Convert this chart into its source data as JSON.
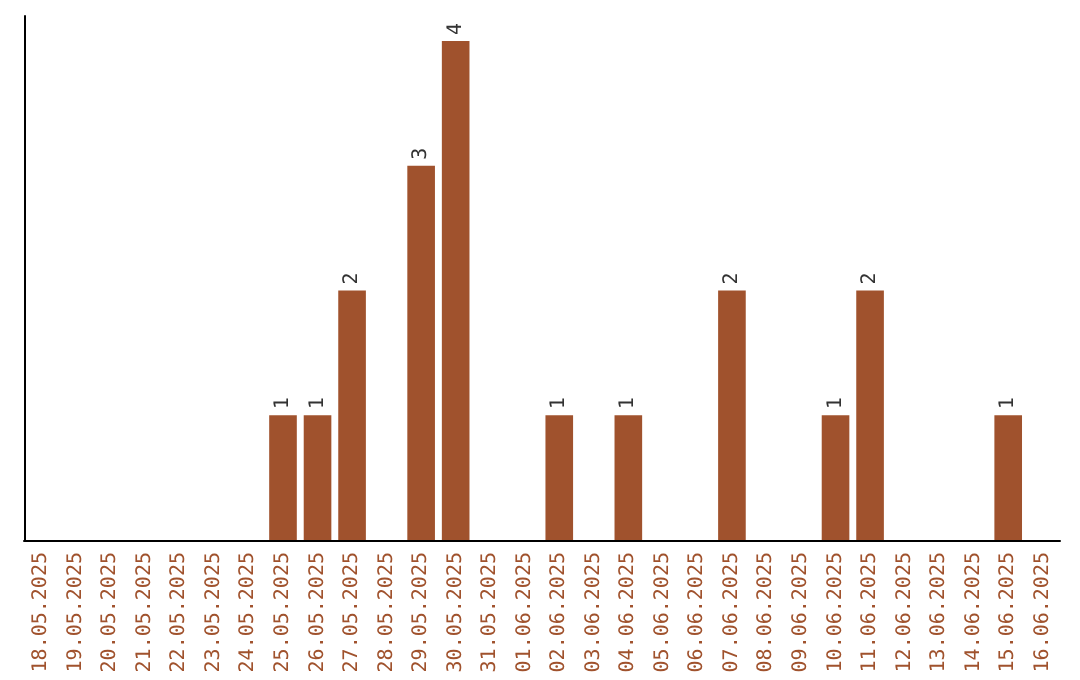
{
  "chart_data": {
    "type": "bar",
    "categories": [
      "18.05.2025",
      "19.05.2025",
      "20.05.2025",
      "21.05.2025",
      "22.05.2025",
      "23.05.2025",
      "24.05.2025",
      "25.05.2025",
      "26.05.2025",
      "27.05.2025",
      "28.05.2025",
      "29.05.2025",
      "30.05.2025",
      "31.05.2025",
      "01.06.2025",
      "02.06.2025",
      "03.06.2025",
      "04.06.2025",
      "05.06.2025",
      "06.06.2025",
      "07.06.2025",
      "08.06.2025",
      "09.06.2025",
      "10.06.2025",
      "11.06.2025",
      "12.06.2025",
      "13.06.2025",
      "14.06.2025",
      "15.06.2025",
      "16.06.2025"
    ],
    "values": [
      0,
      0,
      0,
      0,
      0,
      0,
      0,
      1,
      1,
      2,
      0,
      3,
      4,
      0,
      0,
      1,
      0,
      1,
      0,
      0,
      2,
      0,
      0,
      1,
      2,
      0,
      0,
      0,
      1,
      0
    ],
    "value_labels": [
      null,
      null,
      null,
      null,
      null,
      null,
      null,
      "1",
      "1",
      "2",
      null,
      "3",
      "4",
      null,
      null,
      "1",
      null,
      "1",
      null,
      null,
      "2",
      null,
      null,
      "1",
      "2",
      null,
      null,
      null,
      "1",
      null
    ],
    "color": "#a0522d",
    "grid": false,
    "tick_labels": "x"
  }
}
